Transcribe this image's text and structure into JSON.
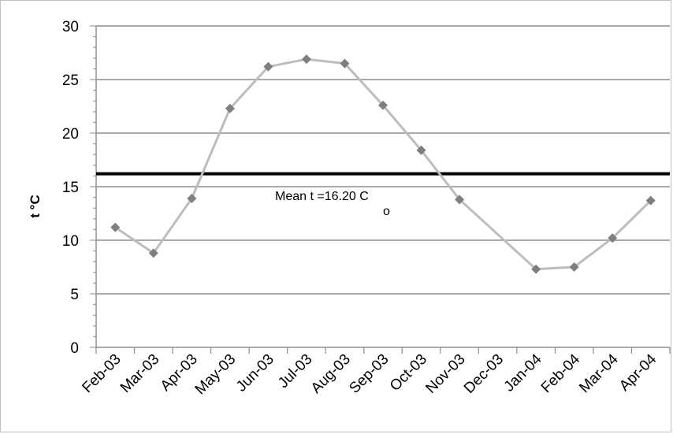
{
  "chart_data": {
    "type": "line",
    "ylabel": "t °C",
    "ylim": [
      0,
      30
    ],
    "yticks": [
      0,
      5,
      10,
      15,
      20,
      25,
      30
    ],
    "grid": "horizontal",
    "categories": [
      "Feb-03",
      "Mar-03",
      "Apr-03",
      "May-03",
      "Jun-03",
      "Jul-03",
      "Aug-03",
      "Sep-03",
      "Oct-03",
      "Nov-03",
      "Dec-03",
      "Jan-04",
      "Feb-04",
      "Mar-04",
      "Apr-04"
    ],
    "series": [
      {
        "color": "#bdbdbd",
        "marker_color": "#7f7f7f",
        "values": [
          11.2,
          8.8,
          13.9,
          22.3,
          26.2,
          26.9,
          26.5,
          22.6,
          18.4,
          13.8,
          null,
          7.3,
          7.5,
          10.2,
          13.7
        ]
      }
    ],
    "mean_line": {
      "value": 16.2,
      "color": "#000000"
    },
    "annotation": {
      "text": "Mean t =16.20  C",
      "superscript": "o"
    }
  }
}
